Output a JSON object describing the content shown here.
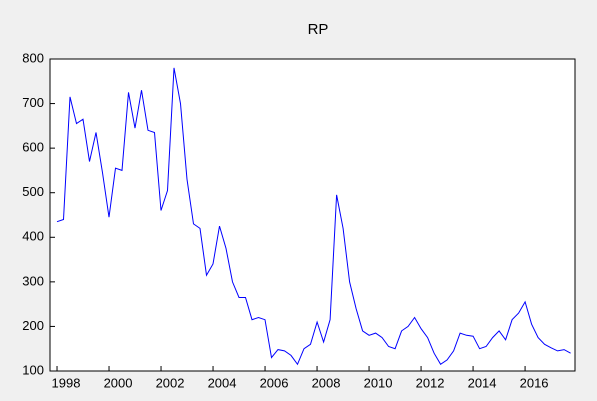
{
  "chart_data": {
    "type": "line",
    "title": "RP",
    "x": [
      1998,
      1998.25,
      1998.5,
      1998.75,
      1999,
      1999.25,
      1999.5,
      1999.75,
      2000,
      2000.25,
      2000.5,
      2000.75,
      2001,
      2001.25,
      2001.5,
      2001.75,
      2002,
      2002.25,
      2002.5,
      2002.75,
      2003,
      2003.25,
      2003.5,
      2003.75,
      2004,
      2004.25,
      2004.5,
      2004.75,
      2005,
      2005.25,
      2005.5,
      2005.75,
      2006,
      2006.25,
      2006.5,
      2006.75,
      2007,
      2007.25,
      2007.5,
      2007.75,
      2008,
      2008.25,
      2008.5,
      2008.75,
      2009,
      2009.25,
      2009.5,
      2009.75,
      2010,
      2010.25,
      2010.5,
      2010.75,
      2011,
      2011.25,
      2011.5,
      2011.75,
      2012,
      2012.25,
      2012.5,
      2012.75,
      2013,
      2013.25,
      2013.5,
      2013.75,
      2014,
      2014.25,
      2014.5,
      2014.75,
      2015,
      2015.25,
      2015.5,
      2015.75,
      2016,
      2016.25,
      2016.5,
      2016.75,
      2017,
      2017.25,
      2017.5,
      2017.75
    ],
    "series": [
      {
        "color": "#0000ff",
        "values": [
          435,
          440,
          715,
          655,
          665,
          570,
          635,
          545,
          445,
          555,
          550,
          725,
          645,
          730,
          640,
          635,
          460,
          505,
          780,
          700,
          530,
          430,
          420,
          315,
          340,
          425,
          375,
          300,
          265,
          265,
          215,
          220,
          215,
          130,
          148,
          145,
          135,
          115,
          150,
          160,
          210,
          165,
          215,
          495,
          420,
          300,
          240,
          190,
          180,
          185,
          175,
          155,
          150,
          190,
          200,
          220,
          195,
          175,
          140,
          115,
          125,
          145,
          185,
          180,
          178,
          150,
          155,
          175,
          190,
          170,
          215,
          230,
          255,
          205,
          175,
          160,
          152,
          145,
          148,
          140
        ]
      }
    ],
    "xlim": [
      1997.73,
      2017.92
    ],
    "xticks": [
      1998,
      2000,
      2002,
      2004,
      2006,
      2008,
      2010,
      2012,
      2014,
      2016
    ],
    "ylim": [
      100,
      800
    ],
    "yticks": [
      100,
      200,
      300,
      400,
      500,
      600,
      700,
      800
    ]
  }
}
